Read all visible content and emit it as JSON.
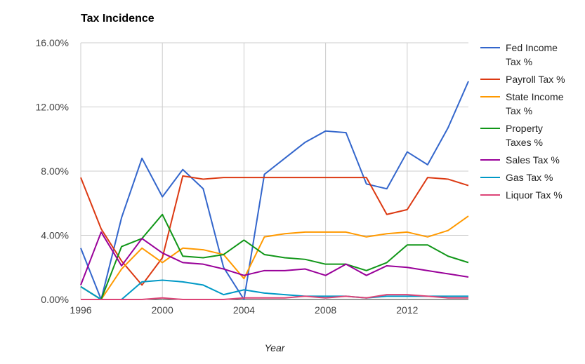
{
  "chart_data": {
    "type": "line",
    "title": "Tax Incidence",
    "xlabel": "Year",
    "ylabel": "",
    "x": [
      1996,
      1997,
      1998,
      1999,
      2000,
      2001,
      2002,
      2003,
      2004,
      2005,
      2006,
      2007,
      2008,
      2009,
      2010,
      2011,
      2012,
      2013,
      2014,
      2015
    ],
    "xlim": [
      1996,
      2015
    ],
    "ylim": [
      0,
      16
    ],
    "x_ticks": [
      1996,
      2000,
      2004,
      2008,
      2012
    ],
    "x_tick_labels": [
      "1996",
      "2000",
      "2004",
      "2008",
      "2012"
    ],
    "y_ticks": [
      0,
      4,
      8,
      12,
      16
    ],
    "y_tick_labels": [
      "0.00%",
      "4.00%",
      "8.00%",
      "12.00%",
      "16.00%"
    ],
    "grid": true,
    "legend_position": "right",
    "series": [
      {
        "name": "Fed Income Tax %",
        "legend_lines": [
          "Fed Income",
          "Tax %"
        ],
        "color": "#3366cc",
        "values": [
          3.2,
          0.0,
          5.1,
          8.8,
          6.4,
          8.1,
          6.9,
          2.0,
          0.0,
          7.8,
          8.8,
          9.8,
          10.5,
          10.4,
          7.2,
          6.9,
          9.2,
          8.4,
          10.7,
          13.6
        ]
      },
      {
        "name": "Payroll Tax %",
        "legend_lines": [
          "Payroll Tax %"
        ],
        "color": "#dc3912",
        "values": [
          7.6,
          4.4,
          2.4,
          0.9,
          2.6,
          7.7,
          7.5,
          7.6,
          7.6,
          7.6,
          7.6,
          7.6,
          7.6,
          7.6,
          7.6,
          5.3,
          5.6,
          7.6,
          7.5,
          7.1
        ]
      },
      {
        "name": "State Income Tax %",
        "legend_lines": [
          "State Income",
          "Tax %"
        ],
        "color": "#ff9900",
        "values": [
          0.8,
          0.0,
          1.9,
          3.2,
          2.3,
          3.2,
          3.1,
          2.8,
          1.3,
          3.9,
          4.1,
          4.2,
          4.2,
          4.2,
          3.9,
          4.1,
          4.2,
          3.9,
          4.3,
          5.2
        ]
      },
      {
        "name": "Property Taxes %",
        "legend_lines": [
          "Property",
          "Taxes %"
        ],
        "color": "#109618",
        "values": [
          0.8,
          0.0,
          3.3,
          3.8,
          5.3,
          2.7,
          2.6,
          2.8,
          3.7,
          2.8,
          2.6,
          2.5,
          2.2,
          2.2,
          1.8,
          2.3,
          3.4,
          3.4,
          2.7,
          2.3
        ]
      },
      {
        "name": "Sales Tax %",
        "legend_lines": [
          "Sales Tax %"
        ],
        "color": "#990099",
        "values": [
          0.9,
          4.2,
          2.1,
          3.8,
          2.9,
          2.3,
          2.2,
          1.9,
          1.5,
          1.8,
          1.8,
          1.9,
          1.5,
          2.2,
          1.5,
          2.1,
          2.0,
          1.8,
          1.6,
          1.4
        ]
      },
      {
        "name": "Gas Tax %",
        "legend_lines": [
          "Gas Tax %"
        ],
        "color": "#0099c6",
        "values": [
          0.8,
          0.0,
          0.0,
          1.1,
          1.2,
          1.1,
          0.9,
          0.3,
          0.6,
          0.4,
          0.3,
          0.2,
          0.2,
          0.2,
          0.1,
          0.2,
          0.2,
          0.2,
          0.2,
          0.2
        ]
      },
      {
        "name": "Liquor Tax %",
        "legend_lines": [
          "Liquor Tax %"
        ],
        "color": "#dd4477",
        "values": [
          0.0,
          0.0,
          0.0,
          0.0,
          0.1,
          0.0,
          0.0,
          0.0,
          0.1,
          0.1,
          0.1,
          0.2,
          0.1,
          0.2,
          0.1,
          0.3,
          0.3,
          0.2,
          0.1,
          0.1
        ]
      }
    ]
  }
}
